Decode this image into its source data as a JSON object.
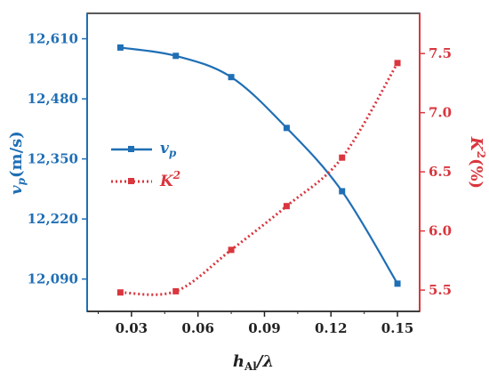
{
  "chart_data": {
    "type": "line",
    "xlabel_main": "h",
    "xlabel_sub": "Al",
    "xlabel_tail": "/λ",
    "x_ticks": [
      "0.03",
      "0.06",
      "0.09",
      "0.12",
      "0.15"
    ],
    "xlim": [
      0.01,
      0.16
    ],
    "left_axis": {
      "label_main": "v",
      "label_sub": "p",
      "label_unit": "(m/s)",
      "ylim": [
        12020,
        12665
      ],
      "ticks": [
        "12,090",
        "12,220",
        "12,350",
        "12,480",
        "12,610"
      ],
      "tick_values": [
        12090,
        12220,
        12350,
        12480,
        12610
      ],
      "color": "#1f6fb5"
    },
    "right_axis": {
      "label_main": "K",
      "label_sup": "2",
      "label_unit": "(%)",
      "ylim": [
        5.32,
        7.84
      ],
      "ticks": [
        "5.5",
        "6.0",
        "6.5",
        "7.0",
        "7.5"
      ],
      "tick_values": [
        5.5,
        6.0,
        6.5,
        7.0,
        7.5
      ],
      "color": "#d9363e"
    },
    "series": [
      {
        "name_main": "v",
        "name_sub": "p",
        "axis": "left",
        "style": "solid",
        "color": "#1f6fb5",
        "x": [
          0.025,
          0.05,
          0.075,
          0.1,
          0.125,
          0.15
        ],
        "y": [
          12591,
          12573,
          12527,
          12417,
          12280,
          12080
        ]
      },
      {
        "name_main": "K",
        "name_sup": "2",
        "axis": "right",
        "style": "dotted",
        "color": "#d9363e",
        "x": [
          0.025,
          0.05,
          0.075,
          0.1,
          0.125,
          0.15
        ],
        "y": [
          5.48,
          5.49,
          5.84,
          6.21,
          6.62,
          7.42
        ]
      }
    ],
    "legend_position": "middle-left"
  }
}
